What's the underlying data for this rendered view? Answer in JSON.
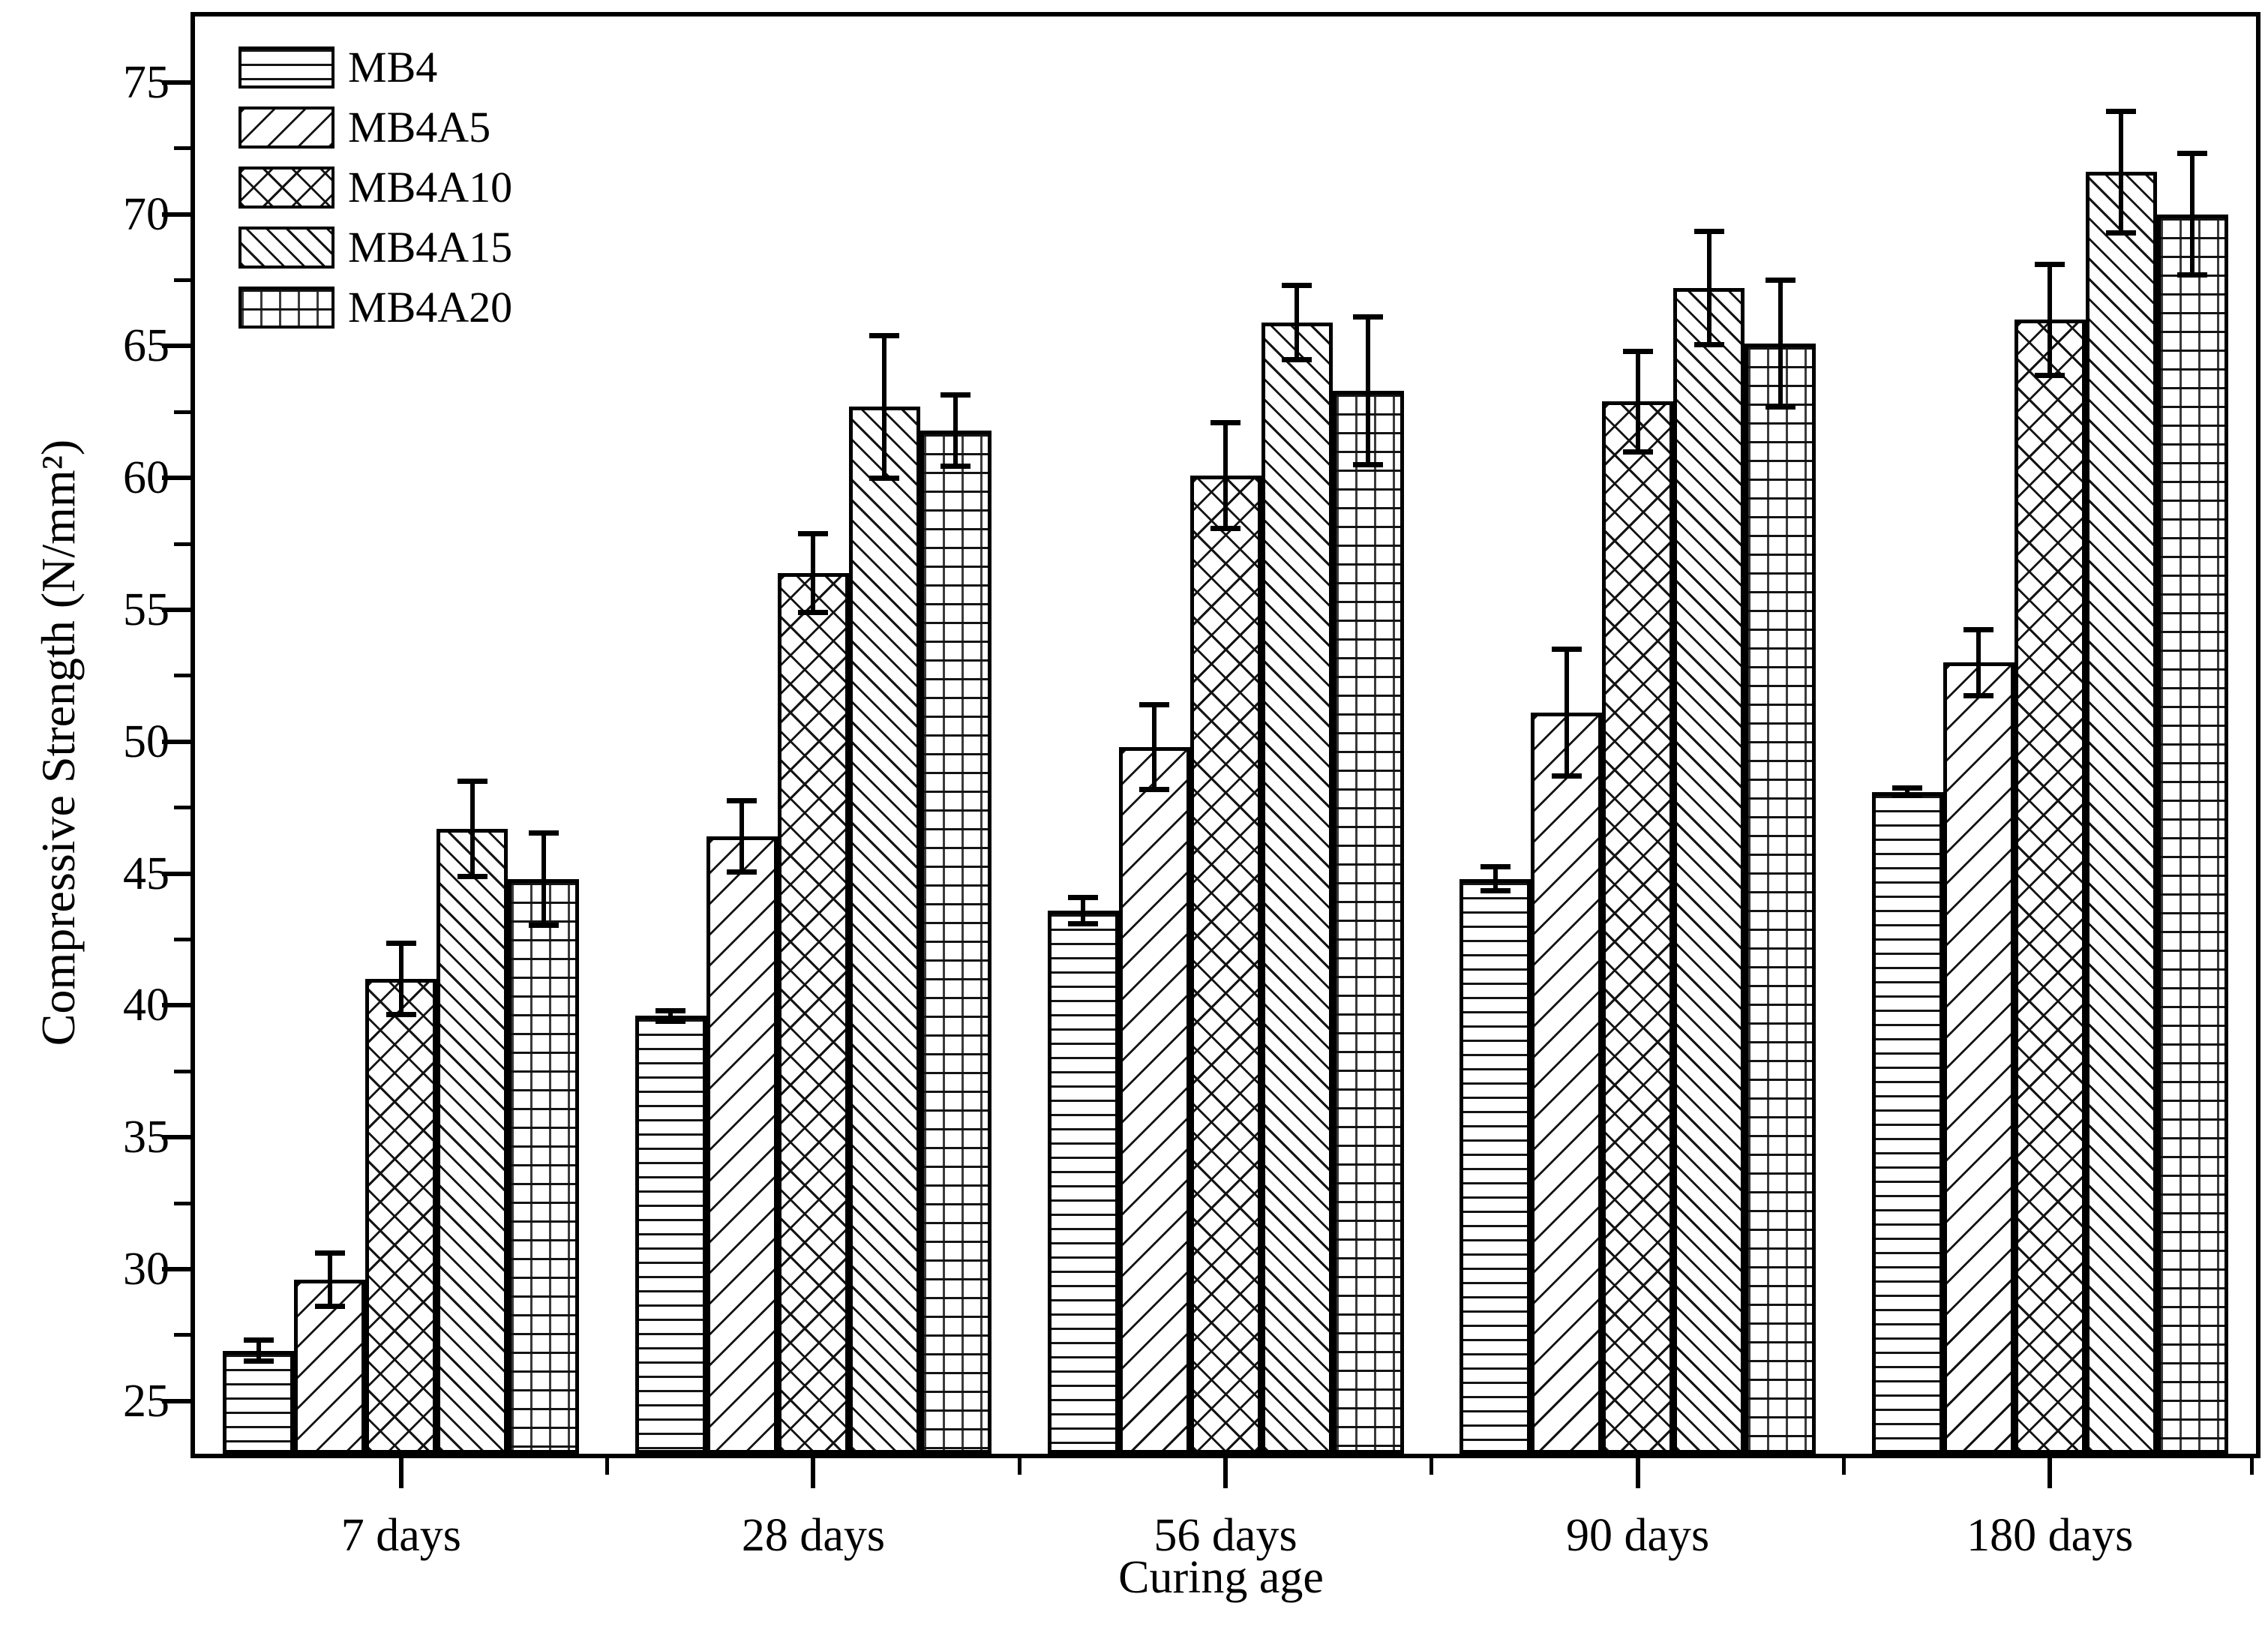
{
  "figure": {
    "background": "#ffffff",
    "axis_color": "#000000",
    "bar_fill": "#ffffff",
    "hatch_color": "#141414"
  },
  "chart_data": {
    "type": "bar",
    "title": "",
    "xlabel": "Curing age",
    "ylabel": "Compressive Strength (N/mm²)",
    "categories": [
      "7 days",
      "28 days",
      "56 days",
      "90 days",
      "180 days"
    ],
    "series": [
      {
        "name": "MB4",
        "pattern": "horizontal-lines",
        "values": [
          26.9,
          39.6,
          43.6,
          44.8,
          48.1
        ],
        "errors": [
          0.5,
          0.3,
          0.6,
          0.55,
          0.25
        ]
      },
      {
        "name": "MB4A5",
        "pattern": "diagonal-up",
        "values": [
          29.6,
          46.4,
          49.8,
          51.1,
          53.0
        ],
        "errors": [
          1.1,
          1.45,
          1.7,
          2.5,
          1.35
        ]
      },
      {
        "name": "MB4A10",
        "pattern": "crosshatch",
        "values": [
          41.0,
          56.4,
          60.1,
          62.9,
          66.0
        ],
        "errors": [
          1.45,
          1.6,
          2.1,
          2.0,
          2.2
        ]
      },
      {
        "name": "MB4A15",
        "pattern": "diagonal-down",
        "values": [
          46.7,
          62.7,
          65.9,
          67.2,
          71.6
        ],
        "errors": [
          1.9,
          2.8,
          1.5,
          2.25,
          2.4
        ]
      },
      {
        "name": "MB4A20",
        "pattern": "grid",
        "values": [
          44.8,
          61.8,
          63.3,
          65.1,
          70.0
        ],
        "errors": [
          1.85,
          1.45,
          2.9,
          2.5,
          2.4
        ]
      }
    ],
    "ylim": [
      23,
      77.5
    ],
    "yticks": [
      25,
      30,
      35,
      40,
      45,
      50,
      55,
      60,
      65,
      70,
      75
    ],
    "y_tick_labels": [
      "25",
      "30",
      "35",
      "40",
      "45",
      "50",
      "55",
      "60",
      "65",
      "70",
      "75"
    ],
    "y_minor_step": 2.5,
    "error_bars": true,
    "grid": false,
    "legend_position": "top-left-inside",
    "legend_entries": [
      "MB4",
      "MB4A5",
      "MB4A10",
      "MB4A15",
      "MB4A20"
    ]
  }
}
